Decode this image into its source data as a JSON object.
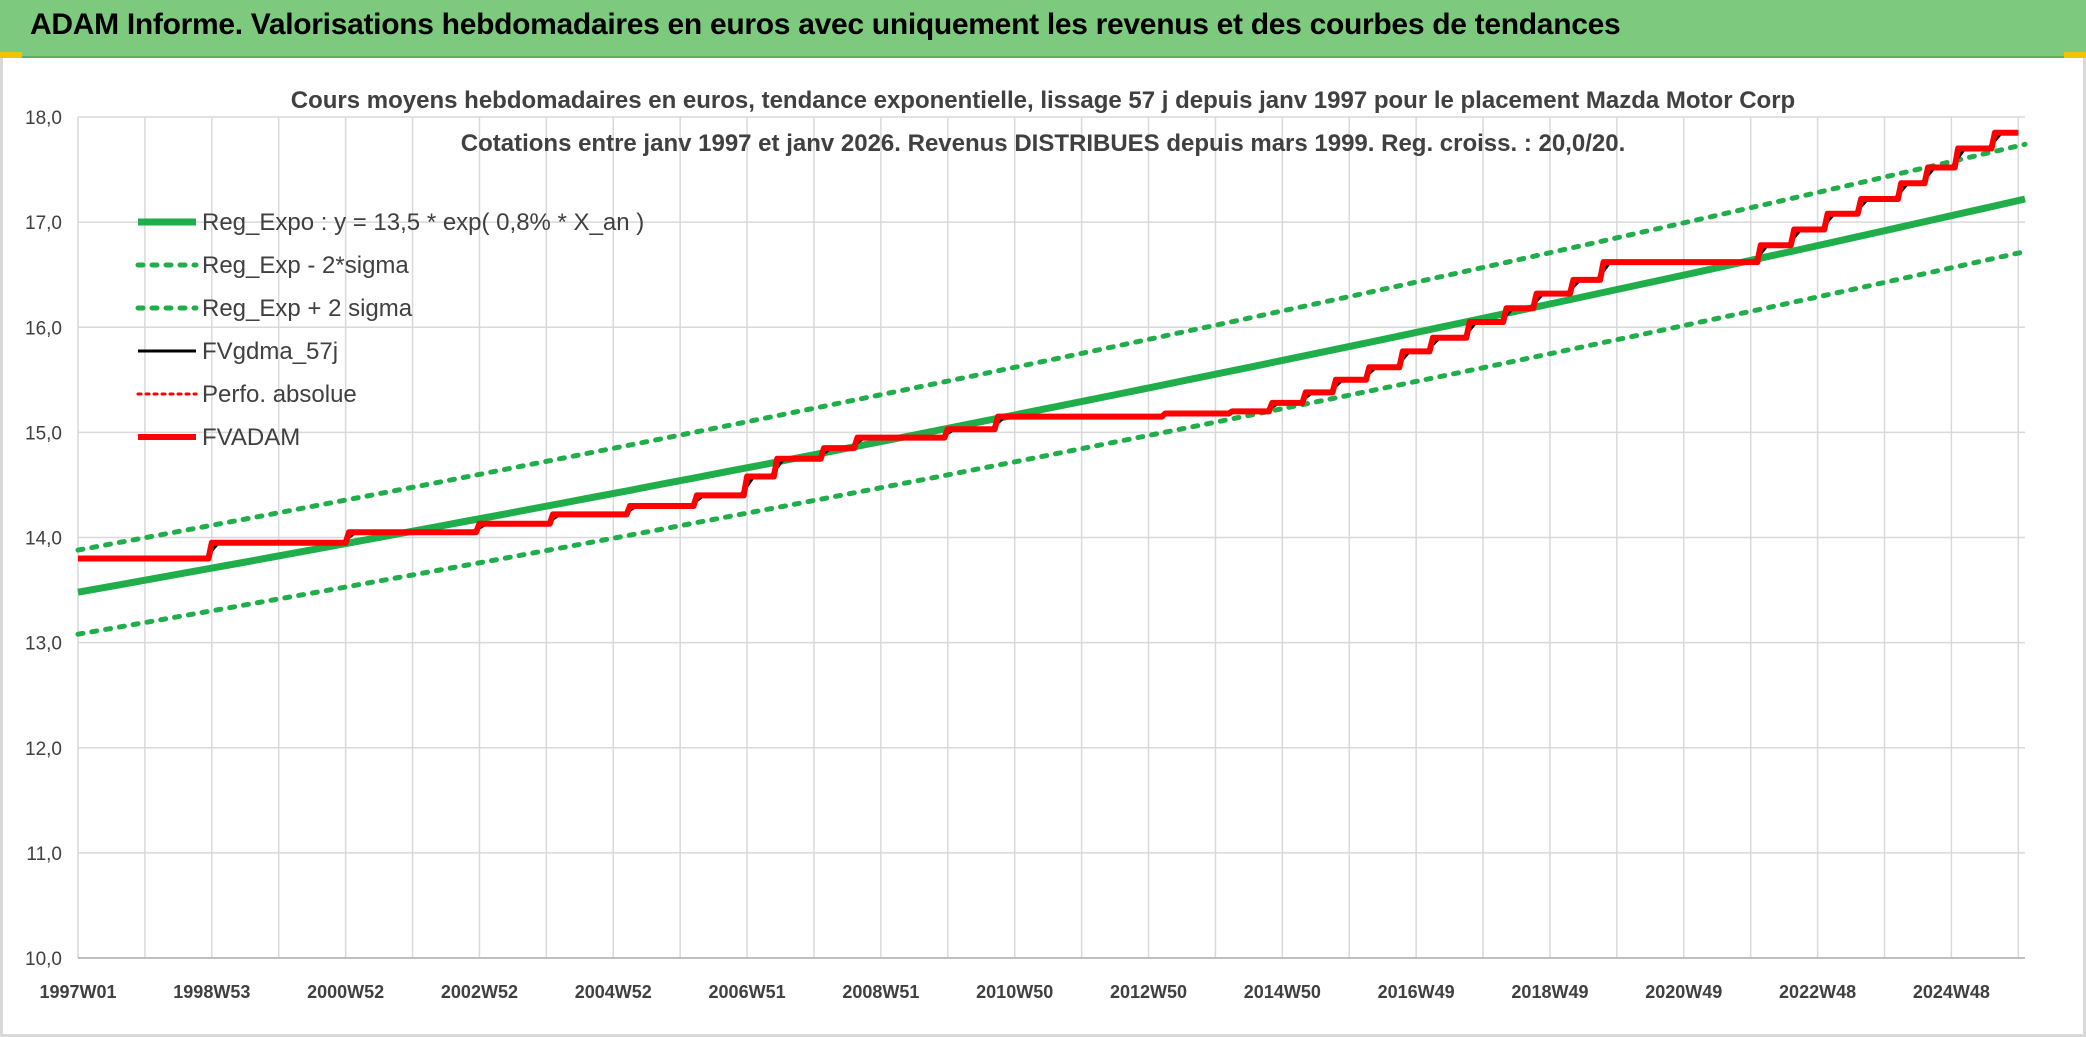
{
  "header": {
    "title": "ADAM Informe. Valorisations hebdomadaires en euros avec uniquement les revenus et des courbes de tendances"
  },
  "colors": {
    "header_bg": "#7dc97d",
    "trend_green": "#1fae4a",
    "fvgdma_black": "#000000",
    "fvadam_red": "#ff0000",
    "grid": "#d9d9d9"
  },
  "chart_data": {
    "type": "line",
    "title_line1": "Cours moyens hebdomadaires en euros, tendance exponentielle, lissage 57 j depuis janv 1997 pour le placement Mazda Motor Corp",
    "title_line2": "Cotations entre janv 1997 et janv 2026. Revenus DISTRIBUES depuis mars 1999. Reg. croiss. : 20,0/20.",
    "x_tick_labels": [
      "1997W01",
      "1998W53",
      "2000W52",
      "2002W52",
      "2004W52",
      "2006W51",
      "2008W51",
      "2010W50",
      "2012W50",
      "2014W50",
      "2016W49",
      "2018W49",
      "2020W49",
      "2022W48",
      "2024W48"
    ],
    "x_range_years": [
      1997.0,
      2026.1
    ],
    "y_tick_labels": [
      "10,0",
      "11,0",
      "12,0",
      "13,0",
      "14,0",
      "15,0",
      "16,0",
      "17,0",
      "18,0"
    ],
    "ylim": [
      10.0,
      18.0
    ],
    "grid": true,
    "legend_position": "top-left",
    "legend": [
      {
        "label": "Reg_Expo : y = 13,5 * exp( 0,8% *  X_an )",
        "style": "solid-green"
      },
      {
        "label": "Reg_Exp - 2*sigma",
        "style": "dotted-green"
      },
      {
        "label": "Reg_Exp + 2 sigma",
        "style": "dotted-green"
      },
      {
        "label": "FVgdma_57j",
        "style": "solid-black"
      },
      {
        "label": "Perfo. absolue",
        "style": "dotted-red"
      },
      {
        "label": "FVADAM",
        "style": "solid-red"
      }
    ],
    "series": [
      {
        "name": "Reg_Expo : y = 13,5 * exp( 0,8% *  X_an )",
        "x": [
          1997.0,
          2026.1
        ],
        "y": [
          13.48,
          17.22
        ]
      },
      {
        "name": "Reg_Exp - 2*sigma",
        "x": [
          1997.0,
          2026.1
        ],
        "y": [
          13.08,
          16.72
        ]
      },
      {
        "name": "Reg_Exp + 2 sigma",
        "x": [
          1997.0,
          2026.1
        ],
        "y": [
          13.88,
          17.74
        ]
      },
      {
        "name": "FVADAM",
        "x": [
          1997.0,
          1998.95,
          1999.0,
          2001.0,
          2001.05,
          2002.95,
          2003.0,
          2004.05,
          2004.1,
          2005.2,
          2005.25,
          2006.2,
          2006.25,
          2006.95,
          2007.0,
          2007.4,
          2007.45,
          2008.1,
          2008.15,
          2008.6,
          2008.65,
          2009.95,
          2010.0,
          2010.7,
          2010.75,
          2013.2,
          2013.25,
          2014.2,
          2014.25,
          2014.8,
          2014.85,
          2015.3,
          2015.35,
          2015.75,
          2015.8,
          2016.25,
          2016.3,
          2016.75,
          2016.8,
          2017.2,
          2017.25,
          2017.75,
          2017.8,
          2018.3,
          2018.35,
          2018.75,
          2018.8,
          2019.3,
          2019.35,
          2019.75,
          2019.8,
          2020.3,
          2020.35,
          2022.1,
          2022.15,
          2022.6,
          2022.65,
          2023.1,
          2023.15,
          2023.6,
          2023.65,
          2024.2,
          2024.25,
          2024.6,
          2024.65,
          2025.05,
          2025.1,
          2025.6,
          2025.65,
          2026.0
        ],
        "y": [
          13.8,
          13.8,
          13.95,
          13.95,
          14.05,
          14.05,
          14.13,
          14.13,
          14.22,
          14.22,
          14.3,
          14.3,
          14.4,
          14.4,
          14.58,
          14.58,
          14.75,
          14.75,
          14.85,
          14.85,
          14.95,
          14.95,
          15.03,
          15.03,
          15.15,
          15.15,
          15.18,
          15.18,
          15.2,
          15.2,
          15.28,
          15.28,
          15.38,
          15.38,
          15.5,
          15.5,
          15.62,
          15.62,
          15.77,
          15.77,
          15.9,
          15.9,
          16.05,
          16.05,
          16.18,
          16.18,
          16.32,
          16.32,
          16.45,
          16.45,
          16.62,
          16.62,
          16.62,
          16.62,
          16.78,
          16.78,
          16.93,
          16.93,
          17.08,
          17.08,
          17.22,
          17.22,
          17.37,
          17.37,
          17.52,
          17.52,
          17.7,
          17.7,
          17.85,
          17.85
        ]
      },
      {
        "name": "FVgdma_57j",
        "x": [
          1997.0,
          1998.9,
          1999.1,
          2000.95,
          2001.15,
          2002.9,
          2003.1,
          2004.0,
          2004.2,
          2005.15,
          2005.35,
          2006.15,
          2006.35,
          2006.9,
          2007.1,
          2007.35,
          2007.55,
          2008.05,
          2008.25,
          2008.55,
          2008.75,
          2009.9,
          2010.1,
          2010.65,
          2010.85,
          2013.15,
          2013.35,
          2014.15,
          2014.35,
          2014.75,
          2014.95,
          2015.25,
          2015.45,
          2015.7,
          2015.9,
          2016.2,
          2016.4,
          2016.7,
          2016.9,
          2017.15,
          2017.35,
          2017.7,
          2017.9,
          2018.25,
          2018.45,
          2018.7,
          2018.9,
          2019.25,
          2019.45,
          2019.7,
          2019.9,
          2020.25,
          2020.45,
          2022.05,
          2022.25,
          2022.55,
          2022.75,
          2023.05,
          2023.25,
          2023.55,
          2023.75,
          2024.15,
          2024.35,
          2024.55,
          2024.75,
          2025.0,
          2025.2,
          2025.55,
          2025.75,
          2026.0
        ],
        "y": [
          13.8,
          13.8,
          13.95,
          13.95,
          14.05,
          14.05,
          14.13,
          14.13,
          14.22,
          14.22,
          14.3,
          14.3,
          14.4,
          14.4,
          14.58,
          14.58,
          14.75,
          14.75,
          14.85,
          14.85,
          14.95,
          14.95,
          15.03,
          15.03,
          15.15,
          15.15,
          15.18,
          15.18,
          15.2,
          15.2,
          15.28,
          15.28,
          15.38,
          15.38,
          15.5,
          15.5,
          15.62,
          15.62,
          15.77,
          15.77,
          15.9,
          15.9,
          16.05,
          16.05,
          16.18,
          16.18,
          16.32,
          16.32,
          16.45,
          16.45,
          16.62,
          16.62,
          16.62,
          16.62,
          16.78,
          16.78,
          16.93,
          16.93,
          17.08,
          17.08,
          17.22,
          17.22,
          17.37,
          17.37,
          17.52,
          17.52,
          17.7,
          17.7,
          17.85,
          17.85
        ]
      }
    ]
  }
}
